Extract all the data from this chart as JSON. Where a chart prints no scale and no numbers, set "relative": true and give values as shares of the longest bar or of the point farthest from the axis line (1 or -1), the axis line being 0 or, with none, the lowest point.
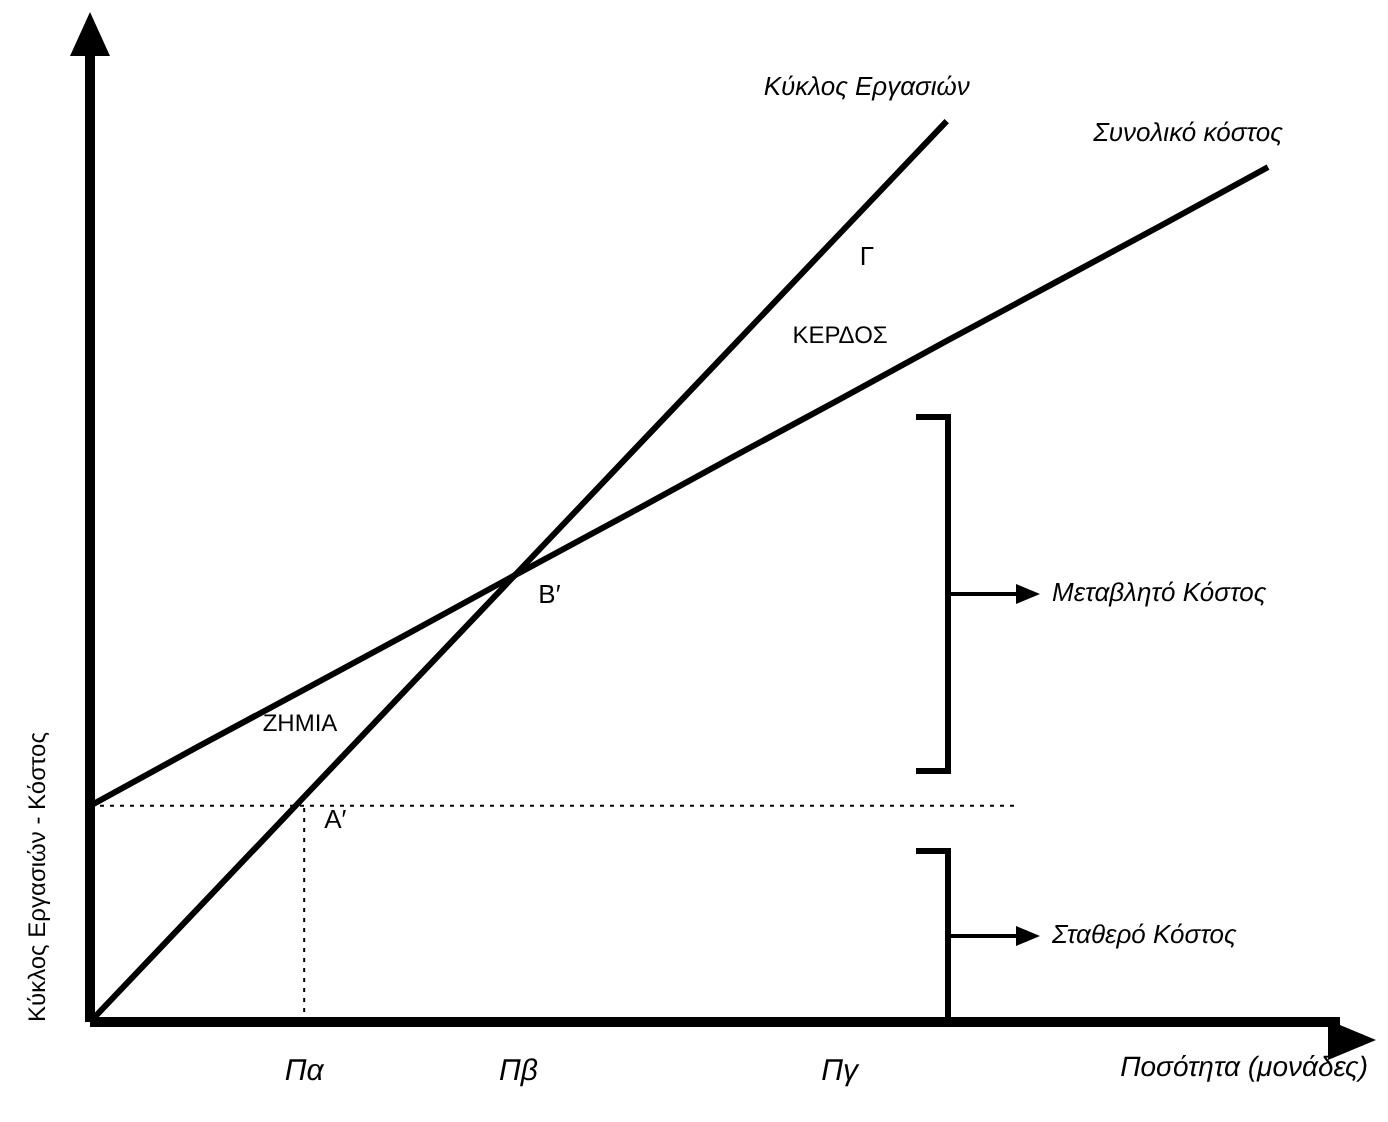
{
  "chart_data": {
    "type": "line",
    "relative": true,
    "xlabel": "Ποσότητα (μονάδες)",
    "ylabel": "Κύκλος Εργασιών - Κόστος",
    "categories": [
      null,
      null,
      "Πα",
      null,
      "Πβ",
      null,
      null,
      "Πγ",
      null,
      null,
      null,
      null
    ],
    "series": [
      {
        "name": "Κύκλος Εργασιών",
        "color": "#000000",
        "values": [
          0,
          0.125,
          0.25,
          0.375,
          0.5,
          0.625,
          0.75,
          0.875,
          1,
          null,
          null,
          null
        ]
      },
      {
        "name": "Συνολικό κόστος",
        "color": "#000000",
        "values": [
          0.24,
          0.305,
          0.369,
          0.433,
          0.498,
          0.562,
          0.627,
          0.691,
          0.756,
          0.82,
          0.884,
          0.949
        ]
      }
    ],
    "ref_lines": [
      {
        "axis": "y",
        "value": 0.24,
        "line_style": "dotted"
      },
      {
        "axis": "x",
        "value": "Πα",
        "line_style": "dotted"
      }
    ],
    "annotations": [
      {
        "text": "Α′",
        "x": "Πα",
        "y": 0.25
      },
      {
        "text": "Β′",
        "x": "Πβ",
        "y": 0.5
      },
      {
        "text": "Γ",
        "x": "Πγ",
        "y": 0.875
      },
      "ΖΗΜΙΑ",
      "ΚΕΡΔΟΣ",
      "Μεταβλητό Κόστος",
      "Σταθερό Κόστος"
    ],
    "grid": false,
    "legend": false,
    "marker": "none",
    "line_style": "solid"
  }
}
